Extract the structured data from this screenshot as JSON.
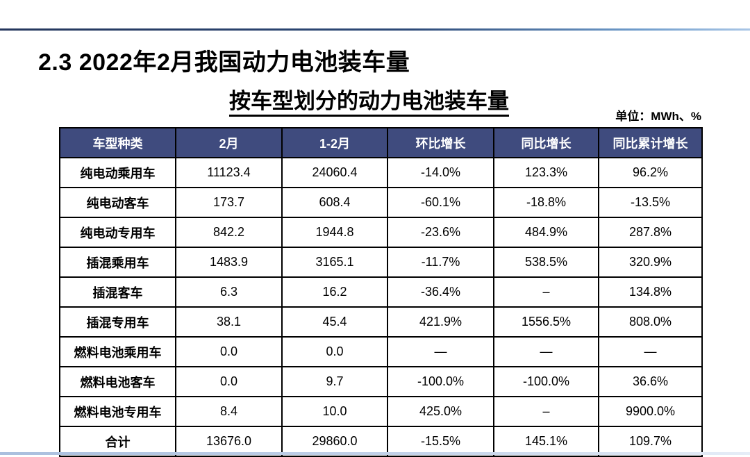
{
  "slide": {
    "section_title": "2.3 2022年2月我国动力电池装车量",
    "table_title": "按车型划分的动力电池装车量",
    "unit_label": "单位：MWh、%"
  },
  "table": {
    "headers": [
      "车型种类",
      "2月",
      "1-2月",
      "环比增长",
      "同比增长",
      "同比累计增长"
    ],
    "rows": [
      [
        "纯电动乘用车",
        "11123.4",
        "24060.4",
        "-14.0%",
        "123.3%",
        "96.2%"
      ],
      [
        "纯电动客车",
        "173.7",
        "608.4",
        "-60.1%",
        "-18.8%",
        "-13.5%"
      ],
      [
        "纯电动专用车",
        "842.2",
        "1944.8",
        "-23.6%",
        "484.9%",
        "287.8%"
      ],
      [
        "插混乘用车",
        "1483.9",
        "3165.1",
        "-11.7%",
        "538.5%",
        "320.9%"
      ],
      [
        "插混客车",
        "6.3",
        "16.2",
        "-36.4%",
        "–",
        "134.8%"
      ],
      [
        "插混专用车",
        "38.1",
        "45.4",
        "421.9%",
        "1556.5%",
        "808.0%"
      ],
      [
        "燃料电池乘用车",
        "0.0",
        "0.0",
        "—",
        "—",
        "—"
      ],
      [
        "燃料电池客车",
        "0.0",
        "9.7",
        "-100.0%",
        "-100.0%",
        "36.6%"
      ],
      [
        "燃料电池专用车",
        "8.4",
        "10.0",
        "425.0%",
        "–",
        "9900.0%"
      ],
      [
        "合计",
        "13676.0",
        "29860.0",
        "-15.5%",
        "145.1%",
        "109.7%"
      ]
    ]
  },
  "chart_data": {
    "type": "table",
    "title": "按车型划分的动力电池装车量",
    "unit": "MWh、%",
    "columns": [
      "车型种类",
      "2月",
      "1-2月",
      "环比增长",
      "同比增长",
      "同比累计增长"
    ],
    "rows": [
      [
        "纯电动乘用车",
        "11123.4",
        "24060.4",
        "-14.0%",
        "123.3%",
        "96.2%"
      ],
      [
        "纯电动客车",
        "173.7",
        "608.4",
        "-60.1%",
        "-18.8%",
        "-13.5%"
      ],
      [
        "纯电动专用车",
        "842.2",
        "1944.8",
        "-23.6%",
        "484.9%",
        "287.8%"
      ],
      [
        "插混乘用车",
        "1483.9",
        "3165.1",
        "-11.7%",
        "538.5%",
        "320.9%"
      ],
      [
        "插混客车",
        "6.3",
        "16.2",
        "-36.4%",
        "–",
        "134.8%"
      ],
      [
        "插混专用车",
        "38.1",
        "45.4",
        "421.9%",
        "1556.5%",
        "808.0%"
      ],
      [
        "燃料电池乘用车",
        "0.0",
        "0.0",
        "—",
        "—",
        "—"
      ],
      [
        "燃料电池客车",
        "0.0",
        "9.7",
        "-100.0%",
        "-100.0%",
        "36.6%"
      ],
      [
        "燃料电池专用车",
        "8.4",
        "10.0",
        "425.0%",
        "–",
        "9900.0%"
      ],
      [
        "合计",
        "13676.0",
        "29860.0",
        "-15.5%",
        "145.1%",
        "109.7%"
      ]
    ]
  },
  "colors": {
    "header_bg": "#3F4B7E",
    "header_text": "#FFFFFF",
    "table_border": "#000000",
    "top_rule_dark": "#24365C",
    "top_rule_light": "#A9C6E6",
    "bottom_strip": "#AABFDE"
  }
}
